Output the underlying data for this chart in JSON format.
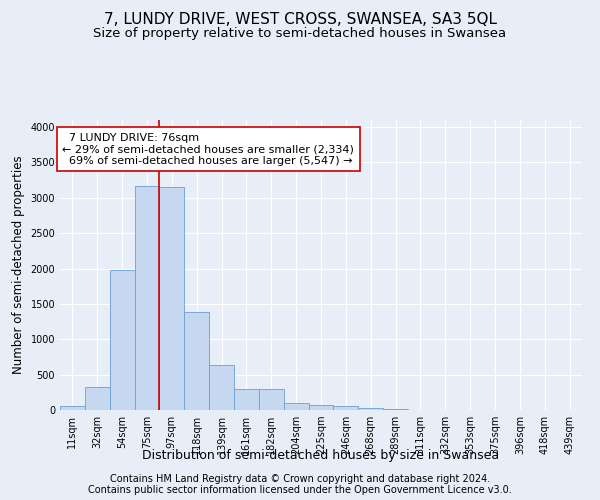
{
  "title": "7, LUNDY DRIVE, WEST CROSS, SWANSEA, SA3 5QL",
  "subtitle": "Size of property relative to semi-detached houses in Swansea",
  "xlabel": "Distribution of semi-detached houses by size in Swansea",
  "ylabel": "Number of semi-detached properties",
  "footer_line1": "Contains HM Land Registry data © Crown copyright and database right 2024.",
  "footer_line2": "Contains public sector information licensed under the Open Government Licence v3.0.",
  "property_label": "7 LUNDY DRIVE: 76sqm",
  "pct_smaller": 29,
  "count_smaller": 2334,
  "pct_larger": 69,
  "count_larger": 5547,
  "bin_labels": [
    "11sqm",
    "32sqm",
    "54sqm",
    "75sqm",
    "97sqm",
    "118sqm",
    "139sqm",
    "161sqm",
    "182sqm",
    "204sqm",
    "225sqm",
    "246sqm",
    "268sqm",
    "289sqm",
    "311sqm",
    "332sqm",
    "353sqm",
    "375sqm",
    "396sqm",
    "418sqm",
    "439sqm"
  ],
  "bar_values": [
    55,
    320,
    1980,
    3160,
    3155,
    1385,
    640,
    295,
    290,
    105,
    65,
    55,
    30,
    10,
    5,
    2,
    1,
    1,
    0,
    0,
    0
  ],
  "bar_color": "#c5d8ef",
  "bar_edge_color": "#6b9fd4",
  "vline_color": "#cc0000",
  "vline_x_bin": 3.5,
  "annotation_box_color": "#ffffff",
  "annotation_box_edge": "#cc0000",
  "ylim": [
    0,
    4100
  ],
  "yticks": [
    0,
    500,
    1000,
    1500,
    2000,
    2500,
    3000,
    3500,
    4000
  ],
  "bg_color": "#e8eef8",
  "plot_bg_color": "#e8eef8",
  "title_fontsize": 11,
  "subtitle_fontsize": 9.5,
  "axis_label_fontsize": 8.5,
  "tick_fontsize": 7,
  "footer_fontsize": 7
}
